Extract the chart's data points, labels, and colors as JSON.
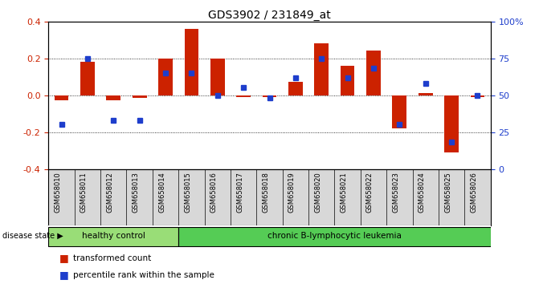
{
  "title": "GDS3902 / 231849_at",
  "samples": [
    "GSM658010",
    "GSM658011",
    "GSM658012",
    "GSM658013",
    "GSM658014",
    "GSM658015",
    "GSM658016",
    "GSM658017",
    "GSM658018",
    "GSM658019",
    "GSM658020",
    "GSM658021",
    "GSM658022",
    "GSM658023",
    "GSM658024",
    "GSM658025",
    "GSM658026"
  ],
  "red_bars": [
    -0.03,
    0.18,
    -0.03,
    -0.015,
    0.2,
    0.36,
    0.2,
    -0.01,
    -0.01,
    0.07,
    0.28,
    0.16,
    0.24,
    -0.18,
    0.01,
    -0.31,
    -0.01
  ],
  "blue_dots_pct": [
    30,
    75,
    33,
    33,
    65,
    65,
    50,
    55,
    48,
    62,
    75,
    62,
    68,
    30,
    58,
    18,
    50
  ],
  "ylim_left": [
    -0.4,
    0.4
  ],
  "ylim_right": [
    0,
    100
  ],
  "yticks_left": [
    -0.4,
    -0.2,
    0.0,
    0.2,
    0.4
  ],
  "yticks_right": [
    0,
    25,
    50,
    75,
    100
  ],
  "ytick_labels_right": [
    "0",
    "25",
    "50",
    "75",
    "100%"
  ],
  "healthy_count": 5,
  "bar_color": "#CC2200",
  "dot_color": "#1E3ECC",
  "healthy_color": "#99DD77",
  "leukemia_color": "#55CC55",
  "label_healthy": "healthy control",
  "label_leukemia": "chronic B-lymphocytic leukemia",
  "disease_state_label": "disease state",
  "legend_red": "transformed count",
  "legend_blue": "percentile rank within the sample",
  "bg_color": "#FFFFFF",
  "bar_width": 0.55,
  "dot_marker_size": 5
}
